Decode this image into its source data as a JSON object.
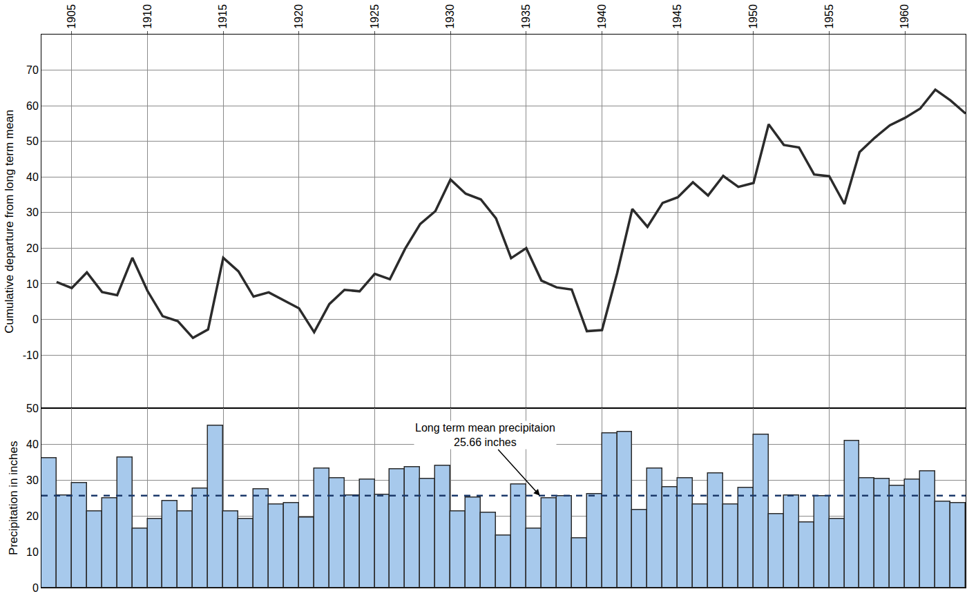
{
  "chart_data": [
    {
      "type": "line",
      "ylabel": "Cumulative departure from long term mean",
      "x": [
        1904,
        1905,
        1906,
        1907,
        1908,
        1909,
        1910,
        1911,
        1912,
        1913,
        1914,
        1915,
        1916,
        1917,
        1918,
        1919,
        1920,
        1921,
        1922,
        1923,
        1924,
        1925,
        1926,
        1927,
        1928,
        1929,
        1930,
        1931,
        1932,
        1933,
        1934,
        1935,
        1936,
        1937,
        1938,
        1939,
        1940,
        1941,
        1942,
        1943,
        1944,
        1945,
        1946,
        1947,
        1948,
        1949,
        1950,
        1951,
        1952,
        1953,
        1954,
        1955,
        1956,
        1957,
        1958,
        1959,
        1960,
        1961,
        1962,
        1963,
        1964
      ],
      "values": [
        10.5,
        8.8,
        13.2,
        7.7,
        6.8,
        17.3,
        8.0,
        0.9,
        -0.5,
        -5.2,
        -2.8,
        17.3,
        13.5,
        6.4,
        7.6,
        5.3,
        3.1,
        -3.6,
        4.3,
        8.3,
        7.9,
        12.8,
        11.3,
        19.8,
        26.8,
        30.4,
        39.3,
        35.3,
        33.7,
        28.4,
        17.2,
        20.0,
        10.9,
        9.0,
        8.4,
        -3.3,
        -3.0,
        13.0,
        31.0,
        26.0,
        32.7,
        34.3,
        38.5,
        34.8,
        40.3,
        37.2,
        38.3,
        54.8,
        49.0,
        48.3,
        40.7,
        40.2,
        32.4,
        47.0,
        51.0,
        54.5,
        56.6,
        59.2,
        64.5,
        61.5,
        57.8
      ],
      "color": "#2b2b2b",
      "xlim": [
        1903,
        1964
      ],
      "xticks": [
        1905,
        1910,
        1915,
        1920,
        1925,
        1930,
        1935,
        1940,
        1945,
        1950,
        1955,
        1960
      ],
      "ylim": [
        -25,
        80
      ],
      "yticks": [
        -10,
        0,
        10,
        20,
        30,
        40,
        50,
        60,
        70
      ],
      "grid": true
    },
    {
      "type": "bar",
      "ylabel": "Precipitation in inches",
      "x": [
        1904,
        1905,
        1906,
        1907,
        1908,
        1909,
        1910,
        1911,
        1912,
        1913,
        1914,
        1915,
        1916,
        1917,
        1918,
        1919,
        1920,
        1921,
        1922,
        1923,
        1924,
        1925,
        1926,
        1927,
        1928,
        1929,
        1930,
        1931,
        1932,
        1933,
        1934,
        1935,
        1936,
        1937,
        1938,
        1939,
        1940,
        1941,
        1942,
        1943,
        1944,
        1945,
        1946,
        1947,
        1948,
        1949,
        1950,
        1951,
        1952,
        1953,
        1954,
        1955,
        1956,
        1957,
        1958,
        1959,
        1960,
        1961,
        1962,
        1963,
        1964
      ],
      "values": [
        36.2,
        25.7,
        29.2,
        21.2,
        25.0,
        36.4,
        16.5,
        19.2,
        24.2,
        21.3,
        27.6,
        45.2,
        21.3,
        19.1,
        27.4,
        23.3,
        23.6,
        19.5,
        33.3,
        30.6,
        25.7,
        30.2,
        26.0,
        33.0,
        33.7,
        30.3,
        34.1,
        21.3,
        25.2,
        21.0,
        14.6,
        28.9,
        16.5,
        25.0,
        25.6,
        13.8,
        26.2,
        43.0,
        43.5,
        21.6,
        33.2,
        28.0,
        30.6,
        23.2,
        31.8,
        23.3,
        27.8,
        42.6,
        20.5,
        25.8,
        18.3,
        25.5,
        19.1,
        41.0,
        30.6,
        30.3,
        28.5,
        30.2,
        32.4,
        24.0,
        23.7
      ],
      "color": "#a7c9ec",
      "xlim": [
        1903,
        1964
      ],
      "xticks": [
        1905,
        1910,
        1915,
        1920,
        1925,
        1930,
        1935,
        1940,
        1945,
        1950,
        1955,
        1960
      ],
      "ylim": [
        0,
        50
      ],
      "yticks": [
        0,
        10,
        20,
        30,
        40,
        50
      ],
      "grid": true,
      "tick_labels": "y",
      "mean_line": {
        "value": 25.66,
        "color": "#1c3a6b",
        "line_style": "dashed"
      },
      "annotation": "Long term mean precipitaion\n25.66 inches"
    }
  ]
}
